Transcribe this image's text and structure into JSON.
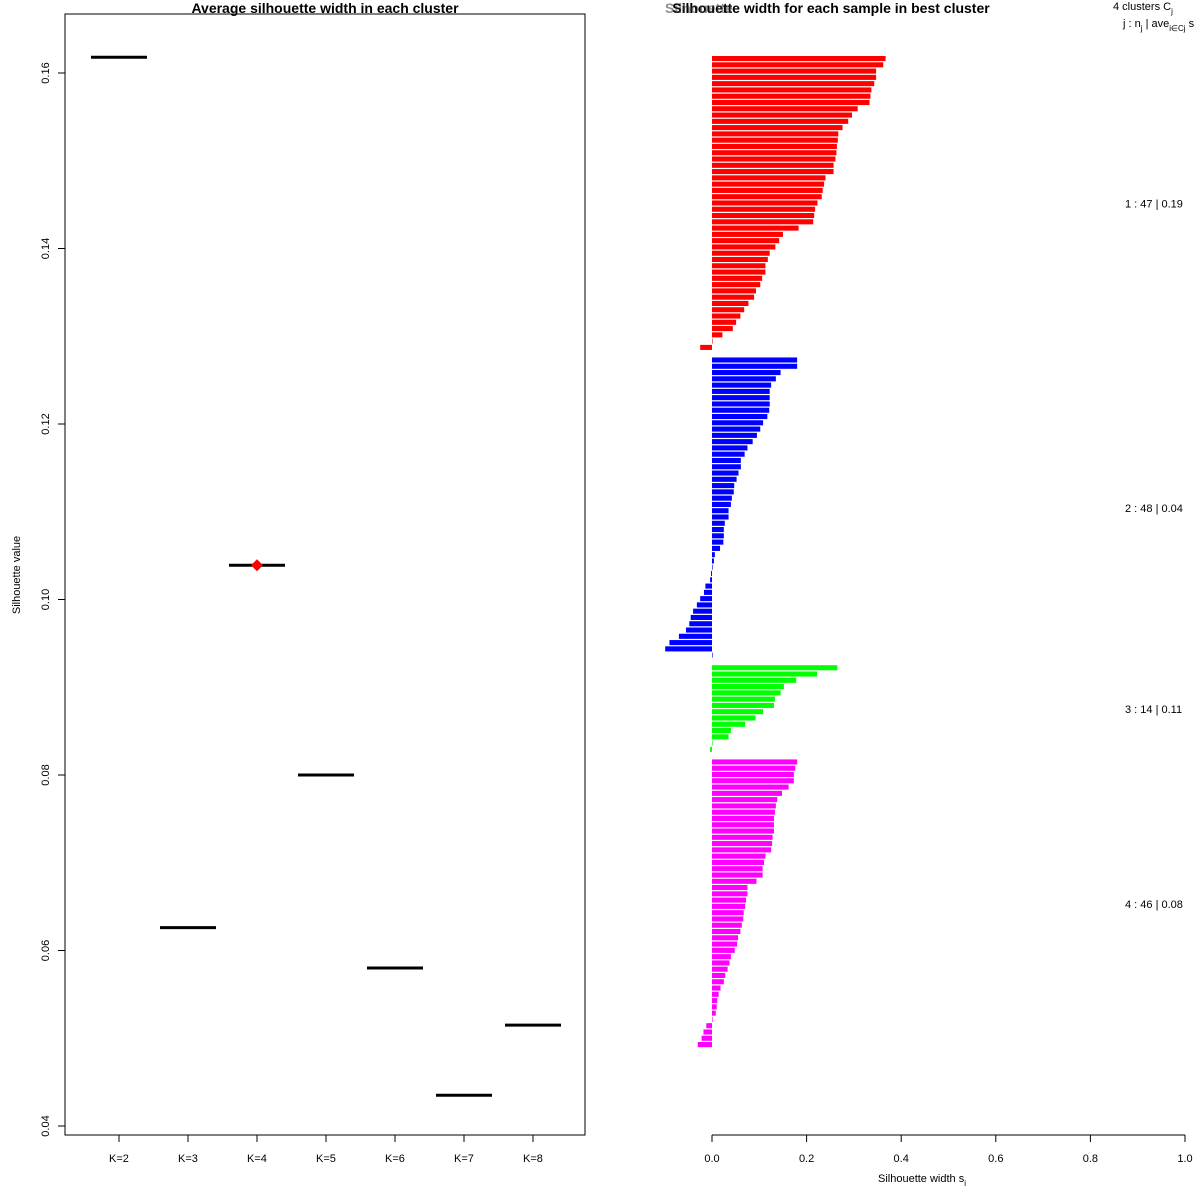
{
  "colors": {
    "cluster1": "#ff0000",
    "cluster2": "#0000ff",
    "cluster3": "#00ff00",
    "cluster4": "#ff00ff",
    "marker": "#ff0000",
    "line": "#000000"
  },
  "chart_data": [
    {
      "type": "scatter",
      "title": "Average silhouette width in each cluster",
      "xlabel": "",
      "ylabel": "Silhouette value",
      "ylim": [
        0.04,
        0.165
      ],
      "categories": [
        "K=2",
        "K=3",
        "K=4",
        "K=5",
        "K=6",
        "K=7",
        "K=8"
      ],
      "values": [
        0.1618,
        0.0626,
        0.1039,
        0.08,
        0.058,
        0.0435,
        0.0515
      ],
      "yticks": [
        "0.04",
        "0.06",
        "0.08",
        "0.10",
        "0.12",
        "0.14",
        "0.16"
      ],
      "best_index": 2
    },
    {
      "type": "bar",
      "title": "Silhouette width for each sample in best cluster",
      "overlay_title": "Silhouette",
      "xlabel": "Silhouette width s",
      "xlabel_sub": "i",
      "xlim": [
        0,
        1
      ],
      "xticks": [
        "0.0",
        "0.2",
        "0.4",
        "0.6",
        "0.8",
        "1.0"
      ],
      "legend_header_1": "4 clusters C",
      "legend_header_1_sub": "j",
      "legend_header_2": "j :  n",
      "legend_header_2_sub": "j",
      "legend_header_2_rest": " | ave",
      "legend_header_2_sub2": "i∈Cj",
      "legend_header_2_tail": " s",
      "series": [
        {
          "name": "cluster 1",
          "label": "1 :  47  |  0.19",
          "values": [
            0.367,
            0.362,
            0.347,
            0.347,
            0.343,
            0.337,
            0.335,
            0.333,
            0.308,
            0.296,
            0.288,
            0.276,
            0.267,
            0.266,
            0.264,
            0.263,
            0.261,
            0.257,
            0.257,
            0.24,
            0.237,
            0.234,
            0.232,
            0.223,
            0.218,
            0.216,
            0.214,
            0.183,
            0.15,
            0.142,
            0.134,
            0.122,
            0.118,
            0.113,
            0.113,
            0.106,
            0.102,
            0.093,
            0.089,
            0.077,
            0.068,
            0.06,
            0.051,
            0.044,
            0.022,
            0.0,
            -0.025
          ]
        },
        {
          "name": "cluster 2",
          "label": "2 :  48  |  0.04",
          "values": [
            0.18,
            0.18,
            0.145,
            0.135,
            0.125,
            0.122,
            0.122,
            0.122,
            0.121,
            0.117,
            0.108,
            0.102,
            0.095,
            0.086,
            0.075,
            0.069,
            0.061,
            0.061,
            0.056,
            0.052,
            0.047,
            0.046,
            0.042,
            0.04,
            0.035,
            0.035,
            0.027,
            0.025,
            0.025,
            0.024,
            0.017,
            0.006,
            0.004,
            0.0,
            -0.002,
            -0.004,
            -0.014,
            -0.017,
            -0.025,
            -0.032,
            -0.04,
            -0.045,
            -0.048,
            -0.055,
            -0.07,
            -0.09,
            -0.099,
            0.0
          ]
        },
        {
          "name": "cluster 3",
          "label": "3 :  14  |  0.11",
          "values": [
            0.265,
            0.222,
            0.178,
            0.152,
            0.145,
            0.133,
            0.131,
            0.108,
            0.092,
            0.07,
            0.04,
            0.035,
            0.0,
            -0.004
          ]
        },
        {
          "name": "cluster 4",
          "label": "4 :  46  |  0.08",
          "values": [
            0.18,
            0.176,
            0.173,
            0.173,
            0.162,
            0.148,
            0.138,
            0.135,
            0.133,
            0.131,
            0.131,
            0.131,
            0.128,
            0.127,
            0.125,
            0.113,
            0.11,
            0.107,
            0.107,
            0.094,
            0.075,
            0.075,
            0.072,
            0.07,
            0.067,
            0.066,
            0.063,
            0.06,
            0.055,
            0.053,
            0.048,
            0.04,
            0.037,
            0.033,
            0.028,
            0.025,
            0.018,
            0.014,
            0.011,
            0.01,
            0.008,
            0.0,
            -0.012,
            -0.018,
            -0.022,
            -0.03
          ]
        }
      ]
    }
  ]
}
